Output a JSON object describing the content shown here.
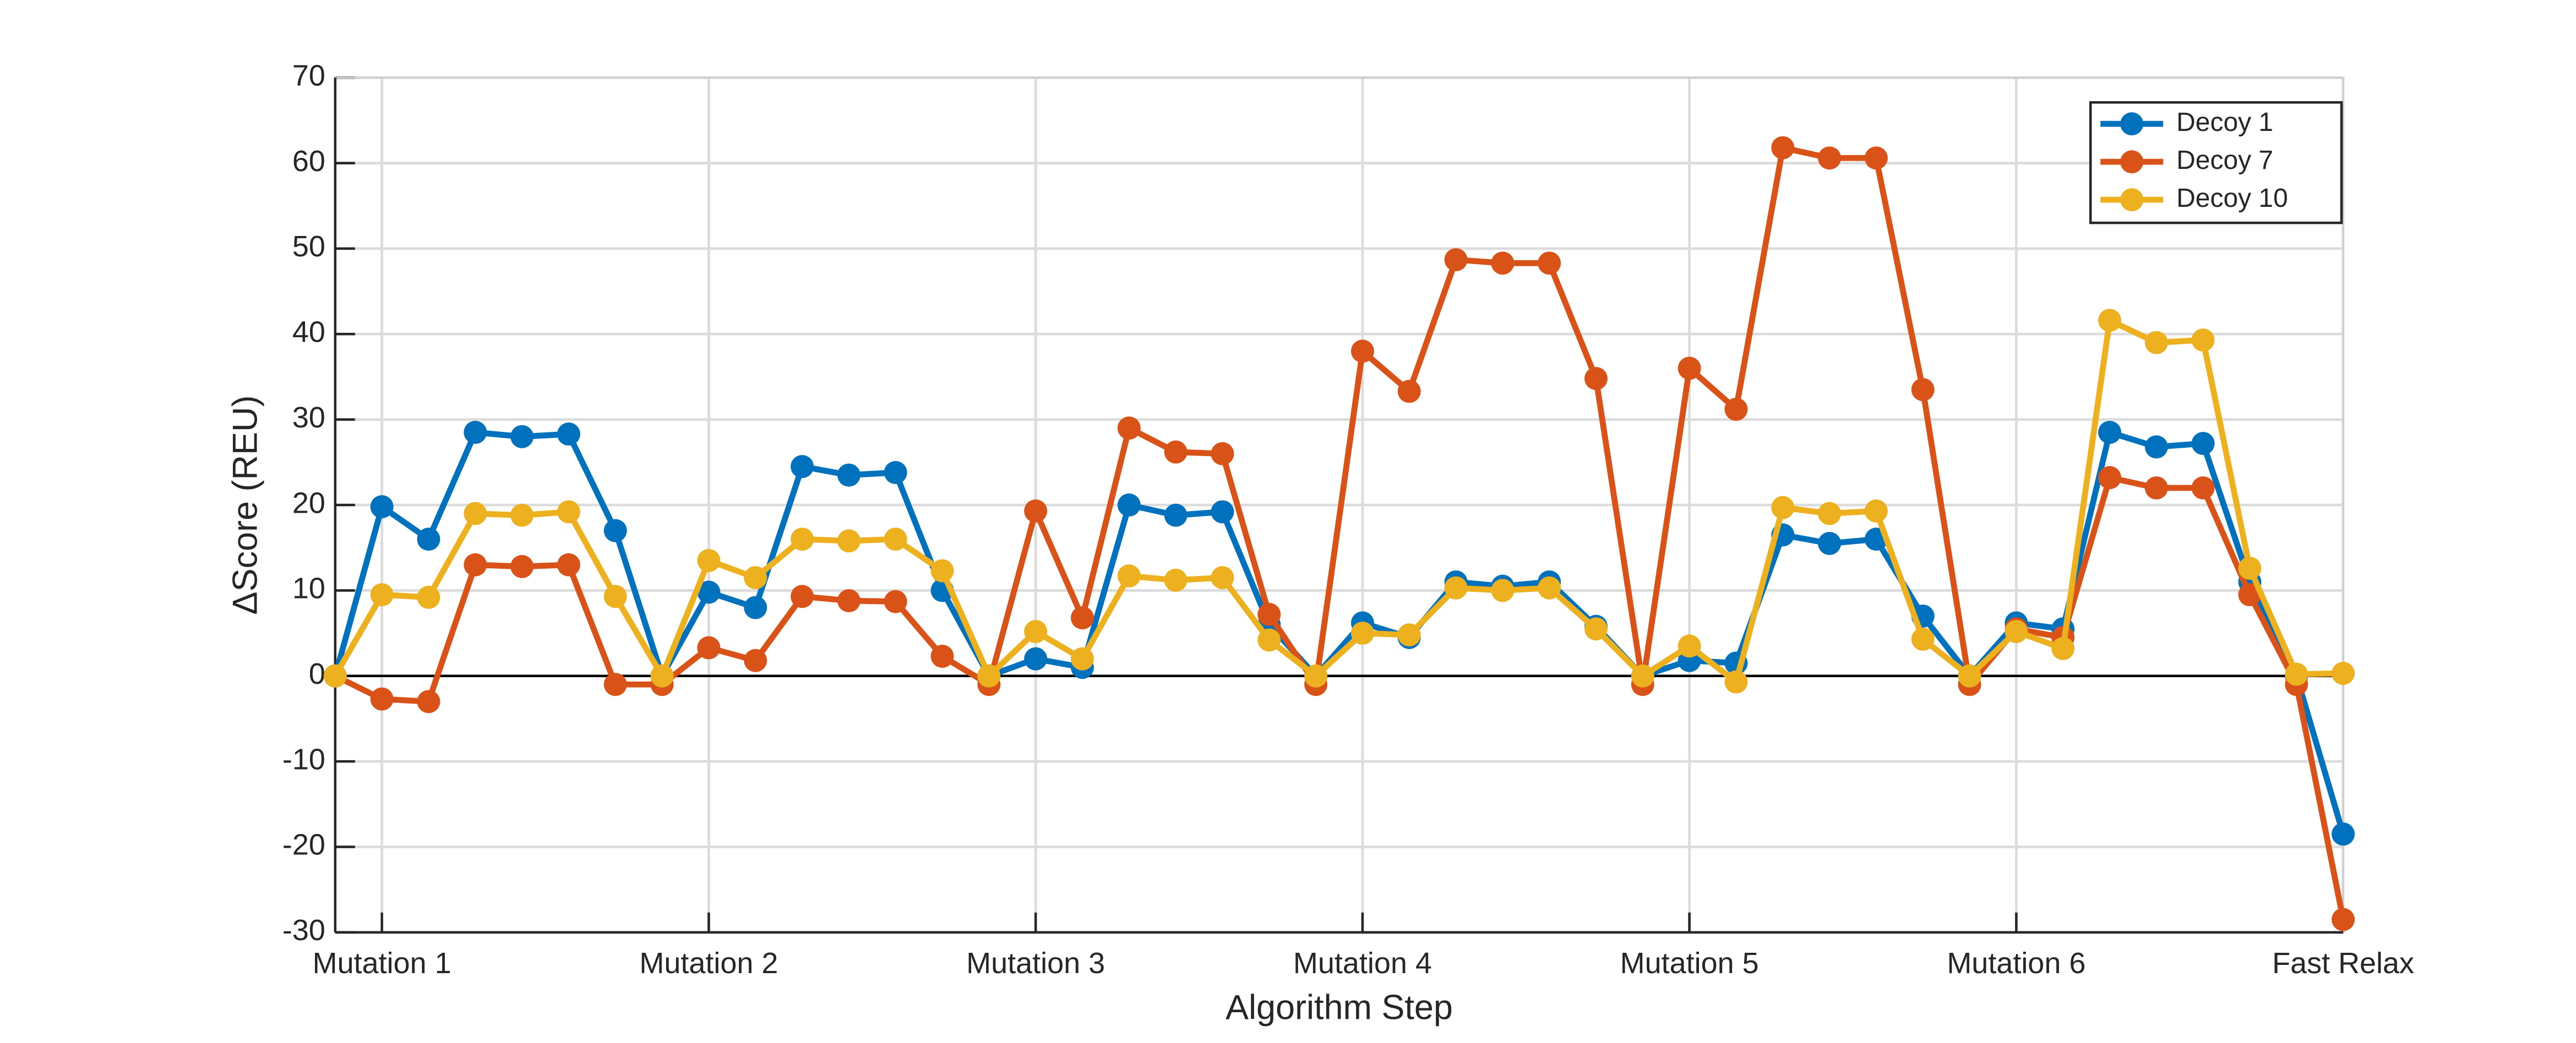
{
  "chart_data": {
    "type": "line",
    "xlabel": "Algorithm Step",
    "ylabel": "ΔScore (REU)",
    "x": [
      0,
      1,
      2,
      3,
      4,
      5,
      6,
      7,
      8,
      9,
      10,
      11,
      12,
      13,
      14,
      15,
      16,
      17,
      18,
      19,
      20,
      21,
      22,
      23,
      24,
      25,
      26,
      27,
      28,
      29,
      30,
      31,
      32,
      33,
      34,
      35,
      36,
      37,
      38,
      39,
      40,
      41,
      42,
      43
    ],
    "series": [
      {
        "name": "Decoy 1",
        "color": "#0072BD",
        "values": [
          0,
          19.8,
          16,
          28.5,
          28,
          28.3,
          17,
          0,
          9.8,
          8,
          24.5,
          23.5,
          23.8,
          10,
          0,
          2,
          1,
          20,
          18.8,
          19.2,
          6,
          0,
          6.2,
          4.5,
          11,
          10.5,
          11,
          5.8,
          0,
          1.8,
          1.5,
          16.5,
          15.5,
          16,
          7,
          0,
          6.2,
          5.5,
          28.5,
          26.8,
          27.2,
          11,
          0,
          -18.5
        ]
      },
      {
        "name": "Decoy 7",
        "color": "#D95319",
        "values": [
          0,
          -2.7,
          -3,
          13,
          12.8,
          13,
          -1,
          -1,
          3.3,
          1.8,
          9.3,
          8.8,
          8.7,
          2.3,
          -1,
          19.3,
          6.8,
          29,
          26.2,
          26,
          7.2,
          -1,
          38,
          33.3,
          48.7,
          48.3,
          48.3,
          34.8,
          -1,
          36,
          31.2,
          61.8,
          60.6,
          60.6,
          33.5,
          -1,
          5.5,
          4.5,
          23.2,
          22,
          22,
          9.5,
          -1,
          -28.5
        ]
      },
      {
        "name": "Decoy 10",
        "color": "#EDB120",
        "values": [
          0,
          9.5,
          9.2,
          19,
          18.8,
          19.2,
          9.3,
          0,
          13.5,
          11.5,
          16,
          15.8,
          16,
          12.3,
          0,
          5.2,
          2,
          11.7,
          11.2,
          11.5,
          4.2,
          0,
          5,
          4.8,
          10.3,
          10,
          10.3,
          5.5,
          0,
          3.5,
          -0.7,
          19.7,
          19,
          19.3,
          4.3,
          0,
          5.2,
          3.2,
          41.6,
          39,
          39.3,
          12.6,
          0.2,
          0.3
        ]
      }
    ],
    "xlim": [
      0,
      43
    ],
    "xticks": [
      {
        "value": 1,
        "label": "Mutation 1"
      },
      {
        "value": 8,
        "label": "Mutation 2"
      },
      {
        "value": 15,
        "label": "Mutation 3"
      },
      {
        "value": 22,
        "label": "Mutation 4"
      },
      {
        "value": 29,
        "label": "Mutation 5"
      },
      {
        "value": 36,
        "label": "Mutation 6"
      },
      {
        "value": 43,
        "label": "Fast Relax"
      }
    ],
    "ylim": [
      -30,
      70
    ],
    "yticks": [
      -30,
      -20,
      -10,
      0,
      10,
      20,
      30,
      40,
      50,
      60,
      70
    ],
    "grid": true,
    "legend": "upper right"
  }
}
